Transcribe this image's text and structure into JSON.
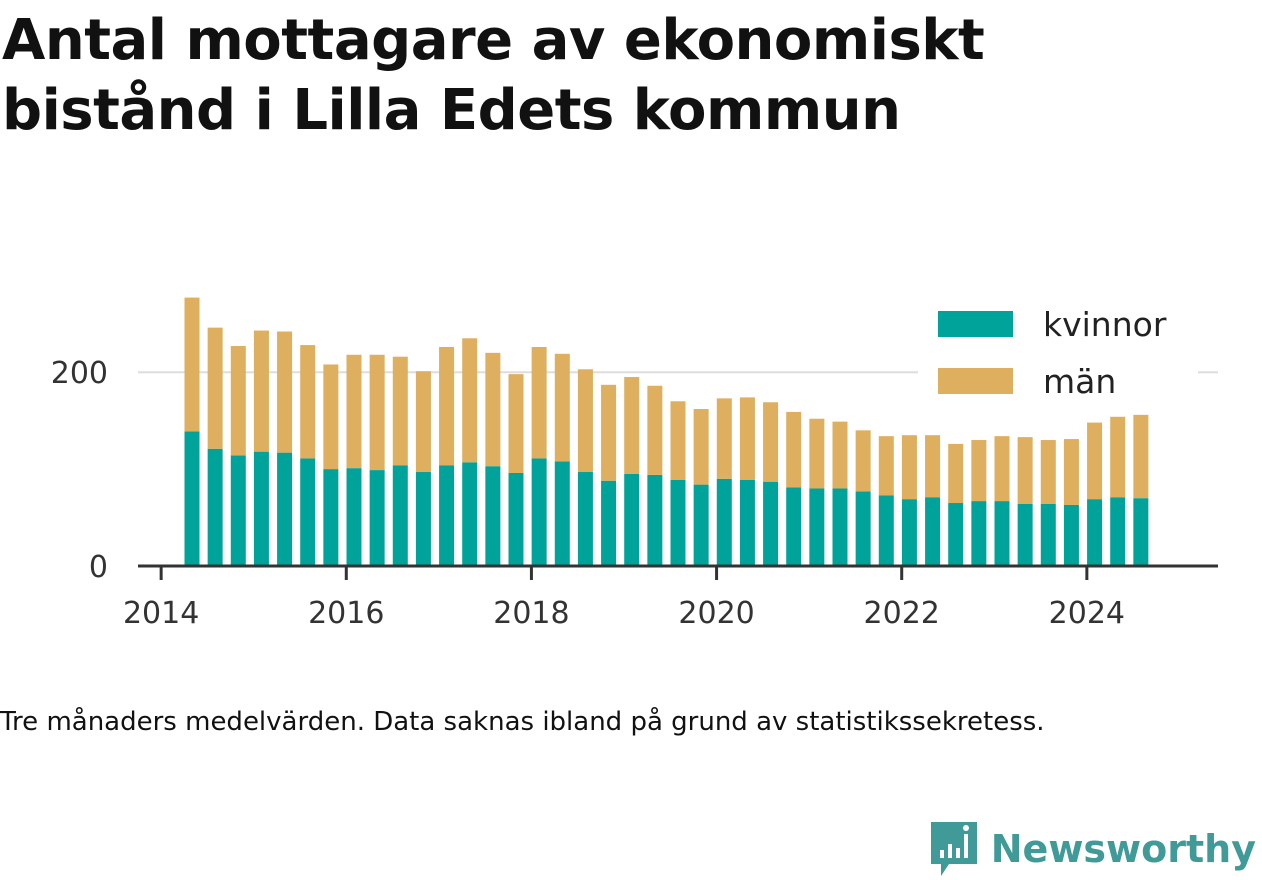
{
  "title": "Antal mottagare av ekonomiskt bistånd i Lilla Edets kommun",
  "note": "Tre månaders medelvärden. Data saknas ibland på grund av statistikssekretess.",
  "brand": {
    "name": "Newsworthy",
    "icon": "newsworthy-logo-icon",
    "color": "#3f9a98"
  },
  "chart_data": {
    "type": "bar",
    "stacked": true,
    "title": "Antal mottagare av ekonomiskt bistånd i Lilla Edets kommun",
    "xlabel": "",
    "ylabel": "",
    "x_ticks": [
      "2014",
      "2016",
      "2018",
      "2020",
      "2022",
      "2024"
    ],
    "y_ticks": [
      "0",
      "200"
    ],
    "xlim": [
      "2013-10",
      "2025-06"
    ],
    "ylim": [
      0,
      290
    ],
    "grid": "horizontal",
    "legend_position": "top-right",
    "x": [
      "2014-05",
      "2014-08",
      "2014-11",
      "2015-02",
      "2015-05",
      "2015-08",
      "2015-11",
      "2016-02",
      "2016-05",
      "2016-08",
      "2016-11",
      "2017-02",
      "2017-05",
      "2017-08",
      "2017-11",
      "2018-02",
      "2018-05",
      "2018-08",
      "2018-11",
      "2019-02",
      "2019-05",
      "2019-08",
      "2019-11",
      "2020-02",
      "2020-05",
      "2020-08",
      "2020-11",
      "2021-02",
      "2021-05",
      "2021-08",
      "2021-11",
      "2022-02",
      "2022-05",
      "2022-08",
      "2022-11",
      "2023-02",
      "2023-05",
      "2023-08",
      "2023-11",
      "2024-02",
      "2024-05",
      "2024-08"
    ],
    "series": [
      {
        "name": "kvinnor",
        "color": "#00a39a",
        "values": [
          139,
          121,
          114,
          118,
          117,
          111,
          100,
          101,
          99,
          104,
          97,
          104,
          107,
          103,
          96,
          111,
          108,
          97,
          88,
          95,
          94,
          89,
          84,
          90,
          89,
          87,
          81,
          80,
          80,
          77,
          73,
          69,
          71,
          65,
          67,
          67,
          64,
          64,
          63,
          69,
          71,
          70
        ]
      },
      {
        "name": "män",
        "color": "#ddaf5e",
        "values": [
          138,
          125,
          113,
          125,
          125,
          117,
          108,
          117,
          119,
          112,
          104,
          122,
          128,
          117,
          102,
          115,
          111,
          106,
          99,
          100,
          92,
          81,
          78,
          83,
          85,
          82,
          78,
          72,
          69,
          63,
          61,
          66,
          64,
          61,
          63,
          67,
          69,
          66,
          68,
          79,
          83,
          86
        ]
      }
    ]
  }
}
